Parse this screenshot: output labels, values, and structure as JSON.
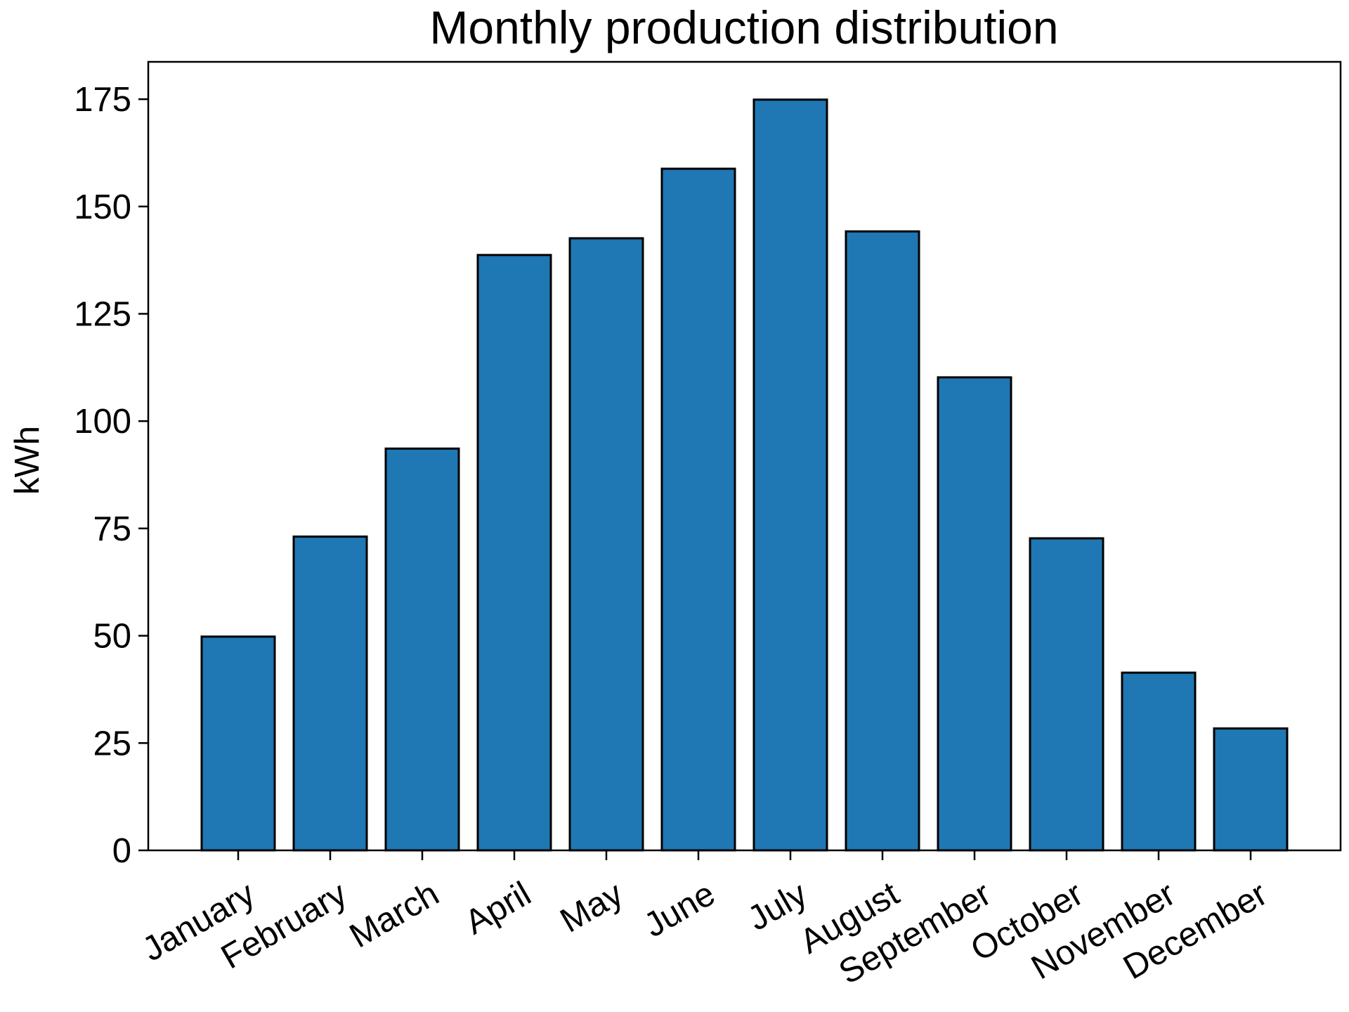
{
  "chart_data": {
    "type": "bar",
    "title": "Monthly production distribution",
    "xlabel": "",
    "ylabel": "kWh",
    "categories": [
      "January",
      "February",
      "March",
      "April",
      "May",
      "June",
      "July",
      "August",
      "September",
      "October",
      "November",
      "December"
    ],
    "values": [
      49.8,
      73.1,
      93.6,
      138.7,
      142.6,
      158.8,
      174.9,
      144.2,
      110.2,
      72.7,
      41.4,
      28.4
    ],
    "ylim": [
      0,
      183.7
    ],
    "yticks": [
      0,
      25,
      50,
      75,
      100,
      125,
      150,
      175
    ],
    "grid": false,
    "legend": "none",
    "colors": {
      "bar_fill": "#1f77b4",
      "bar_edge": "#000000",
      "axis": "#000000"
    }
  }
}
